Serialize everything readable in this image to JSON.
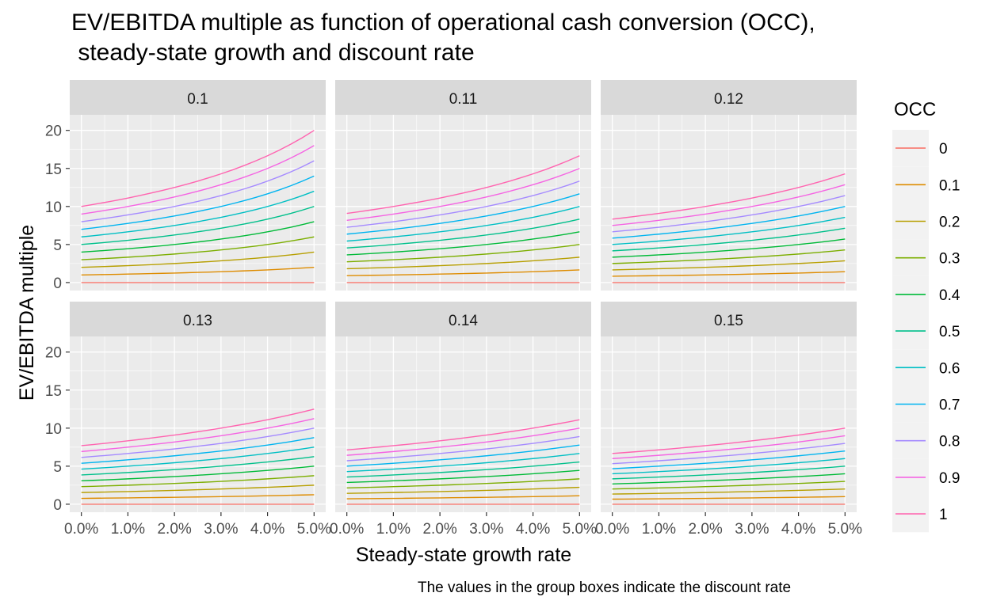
{
  "chart_data": {
    "type": "line",
    "title": "EV/EBITDA multiple as function of operational cash conversion (OCC),",
    "subtitle": " steady-state growth and discount rate",
    "xlabel": "Steady-state growth rate",
    "ylabel": "EV/EBITDA multiple",
    "caption": "The values in the group boxes indicate the discount rate",
    "facet_labels": [
      "0.1",
      "0.11",
      "0.12",
      "0.13",
      "0.14",
      "0.15"
    ],
    "discount_rates": [
      0.1,
      0.11,
      0.12,
      0.13,
      0.14,
      0.15
    ],
    "x_tick_labels": [
      "0.0%",
      "1.0%",
      "2.0%",
      "3.0%",
      "4.0%",
      "5.0%"
    ],
    "x": [
      0.0,
      0.0025,
      0.005,
      0.0075,
      0.01,
      0.0125,
      0.015,
      0.0175,
      0.02,
      0.0225,
      0.025,
      0.0275,
      0.03,
      0.0325,
      0.035,
      0.0375,
      0.04,
      0.0425,
      0.045,
      0.0475,
      0.05
    ],
    "xlim": [
      -0.0025,
      0.0525
    ],
    "y_ticks": [
      0,
      5,
      10,
      15,
      20
    ],
    "ylim": [
      -1.05,
      22.05
    ],
    "grid": true,
    "legend": {
      "title": "OCC",
      "position": "right",
      "entries": [
        "0",
        "0.1",
        "0.2",
        "0.3",
        "0.4",
        "0.5",
        "0.6",
        "0.7",
        "0.8",
        "0.9",
        "1"
      ]
    },
    "occ_values": [
      0,
      0.1,
      0.2,
      0.3,
      0.4,
      0.5,
      0.6,
      0.7,
      0.8,
      0.9,
      1
    ],
    "colors": [
      "#F8766D",
      "#DE8C00",
      "#B79F00",
      "#7CAE00",
      "#00BA38",
      "#00C08B",
      "#00BFC4",
      "#00B4F0",
      "#A58AFF",
      "#F564E3",
      "#FF64B0"
    ],
    "y_formula": "OCC / (discount_rate - growth_rate)"
  }
}
